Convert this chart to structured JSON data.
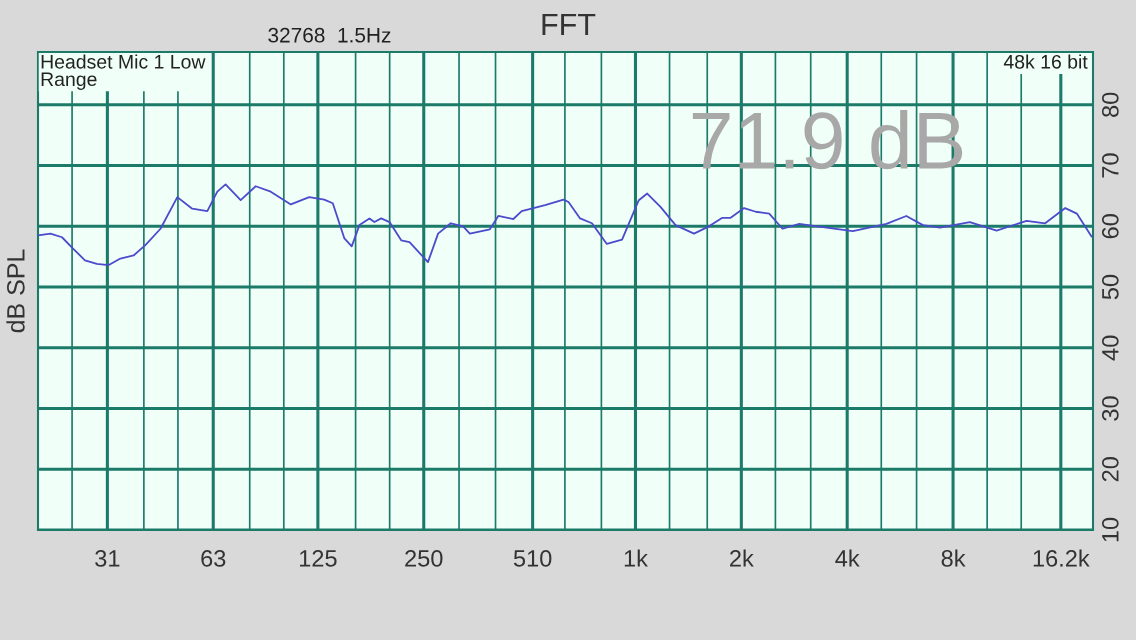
{
  "chart_data": {
    "type": "line",
    "title": "FFT",
    "subtitle": "32768  1.5Hz",
    "ylabel": "dB SPL",
    "annotations": [
      "Headset Mic 1 Low\nRange",
      "48k 16 bit",
      "71.9 dB"
    ],
    "log": "x",
    "grid": true,
    "marker": "none",
    "line_style": "solid",
    "xlim": [
      20,
      20000
    ],
    "ylim": [
      10,
      88.7
    ],
    "xticks": [
      {
        "value": 25,
        "label": null
      },
      {
        "value": 31.5,
        "label": "31"
      },
      {
        "value": 40,
        "label": null
      },
      {
        "value": 50,
        "label": null
      },
      {
        "value": 63,
        "label": "63"
      },
      {
        "value": 80,
        "label": null
      },
      {
        "value": 100,
        "label": null
      },
      {
        "value": 125,
        "label": "125"
      },
      {
        "value": 160,
        "label": null
      },
      {
        "value": 200,
        "label": null
      },
      {
        "value": 250,
        "label": "250"
      },
      {
        "value": 315,
        "label": null
      },
      {
        "value": 400,
        "label": null
      },
      {
        "value": 510,
        "label": "510"
      },
      {
        "value": 630,
        "label": null
      },
      {
        "value": 800,
        "label": null
      },
      {
        "value": 1000,
        "label": "1k"
      },
      {
        "value": 1250,
        "label": null
      },
      {
        "value": 1600,
        "label": null
      },
      {
        "value": 2000,
        "label": "2k"
      },
      {
        "value": 2500,
        "label": null
      },
      {
        "value": 3150,
        "label": null
      },
      {
        "value": 4000,
        "label": "4k"
      },
      {
        "value": 5000,
        "label": null
      },
      {
        "value": 6300,
        "label": null
      },
      {
        "value": 8000,
        "label": "8k"
      },
      {
        "value": 10000,
        "label": null
      },
      {
        "value": 12500,
        "label": null
      },
      {
        "value": 16200,
        "label": "16.2k"
      }
    ],
    "yticks": [
      10,
      20,
      30,
      40,
      50,
      60,
      70,
      80
    ],
    "series": [
      {
        "color": "#4b4bcc",
        "x": [
          20.0,
          21.7,
          23.4,
          25.2,
          27.2,
          29.4,
          31.7,
          34.3,
          37.4,
          40.4,
          44.6,
          49.8,
          54.9,
          60.6,
          64.7,
          68.3,
          75.4,
          83.2,
          91.8,
          104.7,
          118.1,
          130.3,
          137.8,
          148.7,
          156.0,
          164.1,
          175.2,
          181.0,
          189.2,
          199.8,
          215.7,
          227.8,
          257.0,
          274.6,
          298.4,
          323.6,
          338.0,
          385.4,
          407.4,
          449.5,
          474.8,
          553.3,
          624.4,
          645,
          696,
          752,
          829,
          916,
          1022,
          1080,
          1178,
          1300,
          1467,
          1618,
          1766,
          1865,
          2037,
          2198,
          2401,
          2619,
          2923,
          3369,
          4150,
          5170,
          5890,
          6570,
          7340,
          8930,
          10640,
          12950,
          14620,
          16680,
          17990,
          19830
        ],
        "values": [
          58.5,
          58.8,
          58.2,
          56.3,
          54.4,
          53.8,
          53.6,
          54.7,
          55.2,
          56.9,
          59.6,
          64.8,
          62.9,
          62.5,
          65.7,
          66.9,
          64.3,
          66.6,
          65.7,
          63.6,
          64.8,
          64.4,
          63.8,
          58.0,
          56.7,
          60.2,
          61.3,
          60.7,
          61.3,
          60.7,
          57.7,
          57.4,
          54.1,
          58.8,
          60.5,
          60.0,
          58.8,
          59.5,
          61.7,
          61.2,
          62.5,
          63.5,
          64.4,
          64.0,
          61.3,
          60.5,
          57.1,
          57.8,
          64.3,
          65.4,
          63.2,
          60.2,
          58.8,
          60.0,
          61.4,
          61.4,
          63.0,
          62.4,
          62.1,
          59.6,
          60.4,
          59.9,
          59.2,
          60.4,
          61.7,
          60.2,
          59.8,
          60.7,
          59.3,
          60.9,
          60.5,
          63.0,
          62.1,
          58.3
        ]
      }
    ]
  }
}
